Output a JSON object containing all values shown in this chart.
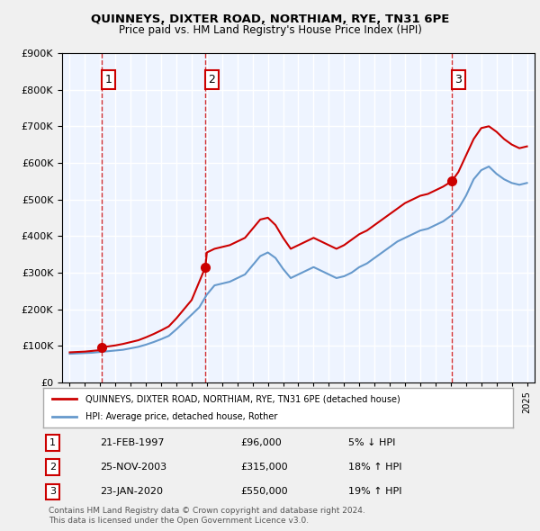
{
  "title": "QUINNEYS, DIXTER ROAD, NORTHIAM, RYE, TN31 6PE",
  "subtitle": "Price paid vs. HM Land Registry's House Price Index (HPI)",
  "legend_property": "QUINNEYS, DIXTER ROAD, NORTHIAM, RYE, TN31 6PE (detached house)",
  "legend_hpi": "HPI: Average price, detached house, Rother",
  "copyright": "Contains HM Land Registry data © Crown copyright and database right 2024.\nThis data is licensed under the Open Government Licence v3.0.",
  "sales": [
    {
      "num": 1,
      "date": "21-FEB-1997",
      "price": 96000,
      "pct": "5%",
      "dir": "↓",
      "year": 1997.12
    },
    {
      "num": 2,
      "date": "25-NOV-2003",
      "price": 315000,
      "pct": "18%",
      "dir": "↑",
      "year": 2003.9
    },
    {
      "num": 3,
      "date": "23-JAN-2020",
      "price": 550000,
      "pct": "19%",
      "dir": "↑",
      "year": 2020.07
    }
  ],
  "property_color": "#cc0000",
  "hpi_color": "#6699cc",
  "vline_color": "#cc0000",
  "bg_color": "#ddeeff",
  "plot_bg": "#eef4ff",
  "grid_color": "#ffffff",
  "ylim": [
    0,
    900000
  ],
  "xlim_start": 1994.5,
  "xlim_end": 2025.5,
  "hpi_data_x": [
    1995,
    1995.5,
    1996,
    1996.5,
    1997,
    1997.5,
    1998,
    1998.5,
    1999,
    1999.5,
    2000,
    2000.5,
    2001,
    2001.5,
    2002,
    2002.5,
    2003,
    2003.5,
    2004,
    2004.5,
    2005,
    2005.5,
    2006,
    2006.5,
    2007,
    2007.5,
    2008,
    2008.5,
    2009,
    2009.5,
    2010,
    2010.5,
    2011,
    2011.5,
    2012,
    2012.5,
    2013,
    2013.5,
    2014,
    2014.5,
    2015,
    2015.5,
    2016,
    2016.5,
    2017,
    2017.5,
    2018,
    2018.5,
    2019,
    2019.5,
    2020,
    2020.5,
    2021,
    2021.5,
    2022,
    2022.5,
    2023,
    2023.5,
    2024,
    2024.5,
    2025
  ],
  "hpi_data_y": [
    78000,
    79000,
    80000,
    81000,
    83000,
    85000,
    87000,
    89000,
    93000,
    97000,
    103000,
    110000,
    118000,
    127000,
    145000,
    165000,
    185000,
    205000,
    240000,
    265000,
    270000,
    275000,
    285000,
    295000,
    320000,
    345000,
    355000,
    340000,
    310000,
    285000,
    295000,
    305000,
    315000,
    305000,
    295000,
    285000,
    290000,
    300000,
    315000,
    325000,
    340000,
    355000,
    370000,
    385000,
    395000,
    405000,
    415000,
    420000,
    430000,
    440000,
    455000,
    475000,
    510000,
    555000,
    580000,
    590000,
    570000,
    555000,
    545000,
    540000,
    545000
  ],
  "prop_data_x": [
    1995,
    1995.5,
    1996,
    1996.5,
    1997,
    1997.12,
    1997.5,
    1998,
    1998.5,
    1999,
    1999.5,
    2000,
    2000.5,
    2001,
    2001.5,
    2002,
    2002.5,
    2003,
    2003.9,
    2004,
    2004.5,
    2005,
    2005.5,
    2006,
    2006.5,
    2007,
    2007.5,
    2008,
    2008.5,
    2009,
    2009.5,
    2010,
    2010.5,
    2011,
    2011.5,
    2012,
    2012.5,
    2013,
    2013.5,
    2014,
    2014.5,
    2015,
    2015.5,
    2016,
    2016.5,
    2017,
    2017.5,
    2018,
    2018.5,
    2019,
    2019.5,
    2020,
    2020.07,
    2020.5,
    2021,
    2021.5,
    2022,
    2022.5,
    2023,
    2023.5,
    2024,
    2024.5,
    2025
  ],
  "prop_data_y": [
    82000,
    83000,
    84000,
    86000,
    88000,
    96000,
    98000,
    101000,
    105000,
    110000,
    115000,
    123000,
    132000,
    142000,
    153000,
    175000,
    200000,
    225000,
    315000,
    355000,
    365000,
    370000,
    375000,
    385000,
    395000,
    420000,
    445000,
    450000,
    430000,
    395000,
    365000,
    375000,
    385000,
    395000,
    385000,
    375000,
    365000,
    375000,
    390000,
    405000,
    415000,
    430000,
    445000,
    460000,
    475000,
    490000,
    500000,
    510000,
    515000,
    525000,
    535000,
    548000,
    550000,
    575000,
    620000,
    665000,
    695000,
    700000,
    685000,
    665000,
    650000,
    640000,
    645000
  ]
}
